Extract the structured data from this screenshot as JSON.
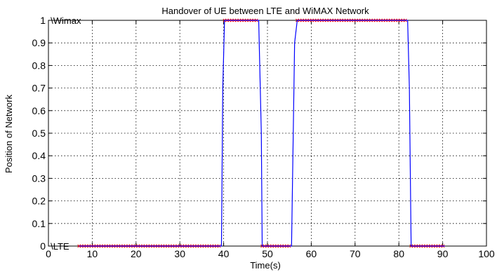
{
  "chart_data": {
    "type": "line",
    "title": "Handover of UE between LTE and WiMAX Network",
    "xlabel": "Time(s)",
    "ylabel": "Position of Network",
    "xlim": [
      0,
      100
    ],
    "ylim": [
      0,
      1
    ],
    "xticks": [
      "0",
      "10",
      "20",
      "30",
      "40",
      "50",
      "60",
      "70",
      "80",
      "90",
      "100"
    ],
    "yticks": [
      "0",
      "0.1",
      "0.2",
      "0.3",
      "0.4",
      "0.5",
      "0.6",
      "0.7",
      "0.8",
      "0.9",
      "1"
    ],
    "grid": true,
    "annotations": [
      {
        "text": "\\Wimax",
        "x": 0.5,
        "y": 1
      },
      {
        "text": "\\LTE",
        "x": 0.5,
        "y": 0
      }
    ],
    "series": [
      {
        "color": "#0000ff",
        "marker": "x",
        "marker_color": "#ff0000",
        "x": [
          7,
          39.5,
          39.8,
          40.2,
          48,
          48.6,
          48.8,
          55.5,
          56.2,
          56.8,
          82,
          82.4,
          82.8,
          90.5
        ],
        "y": [
          0,
          0,
          0.7,
          1,
          1,
          0.5,
          0,
          0,
          0.9,
          1,
          1,
          0.7,
          0,
          0
        ]
      }
    ]
  }
}
